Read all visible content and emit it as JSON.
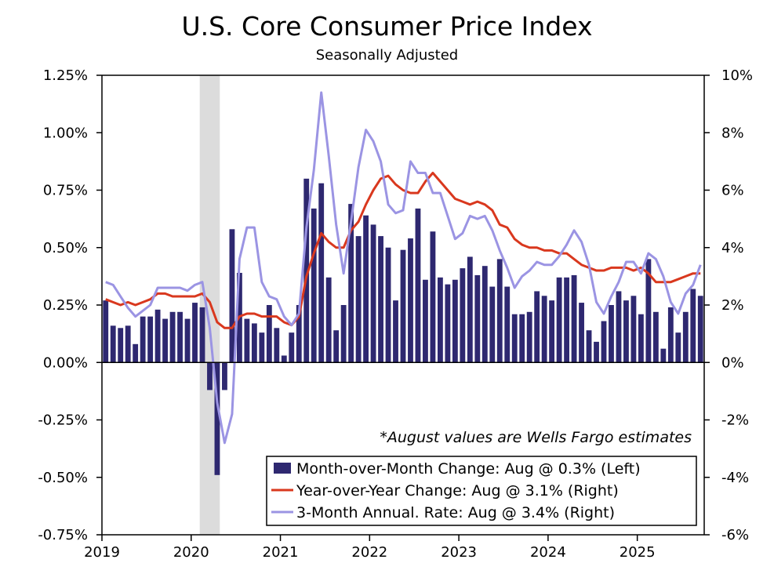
{
  "chart_data": {
    "type": "bar",
    "title": "U.S. Core Consumer Price Index",
    "subtitle": "Seasonally Adjusted",
    "annotation": "*August values are Wells Fargo estimates",
    "start": "2019-01",
    "x_tick_labels": [
      "2019",
      "2020",
      "2021",
      "2022",
      "2023",
      "2024",
      "2025"
    ],
    "y_left": {
      "ylim": [
        -0.75,
        1.25
      ],
      "ticks": [
        -0.75,
        -0.5,
        -0.25,
        0,
        0.25,
        0.5,
        0.75,
        1.0,
        1.25
      ],
      "tick_labels": [
        "-0.75%",
        "-0.50%",
        "-0.25%",
        "0.00%",
        "0.25%",
        "0.50%",
        "0.75%",
        "1.00%",
        "1.25%"
      ]
    },
    "y_right": {
      "ylim": [
        -6,
        10
      ],
      "ticks": [
        -6,
        -4,
        -2,
        0,
        2,
        4,
        6,
        8,
        10
      ],
      "tick_labels": [
        "-6%",
        "-4%",
        "-2%",
        "0%",
        "2%",
        "4%",
        "6%",
        "8%",
        "10%"
      ]
    },
    "recession_shading": [
      "2020-02",
      "2020-04"
    ],
    "legend_position": "bottom-right",
    "series": [
      {
        "name": "Month-over-Month Change: Aug @ 0.3% (Left)",
        "kind": "bar",
        "axis": "left",
        "color": "#2e2870",
        "values": [
          0.27,
          0.16,
          0.15,
          0.16,
          0.08,
          0.2,
          0.2,
          0.23,
          0.19,
          0.22,
          0.22,
          0.19,
          0.26,
          0.24,
          -0.12,
          -0.49,
          -0.12,
          0.58,
          0.39,
          0.19,
          0.17,
          0.13,
          0.25,
          0.15,
          0.03,
          0.13,
          0.25,
          0.8,
          0.67,
          0.78,
          0.37,
          0.14,
          0.25,
          0.69,
          0.55,
          0.64,
          0.6,
          0.55,
          0.5,
          0.27,
          0.49,
          0.54,
          0.67,
          0.36,
          0.57,
          0.37,
          0.34,
          0.36,
          0.41,
          0.46,
          0.38,
          0.42,
          0.33,
          0.45,
          0.33,
          0.21,
          0.21,
          0.22,
          0.31,
          0.29,
          0.27,
          0.37,
          0.37,
          0.38,
          0.26,
          0.14,
          0.09,
          0.18,
          0.25,
          0.31,
          0.27,
          0.29,
          0.21,
          0.45,
          0.22,
          0.06,
          0.24,
          0.13,
          0.22,
          0.32,
          0.29
        ]
      },
      {
        "name": "Year-over-Year Change: Aug @ 3.1% (Right)",
        "kind": "line",
        "axis": "right",
        "color": "#d9381e",
        "values": [
          2.2,
          2.1,
          2.0,
          2.1,
          2.0,
          2.1,
          2.2,
          2.4,
          2.4,
          2.3,
          2.3,
          2.3,
          2.3,
          2.4,
          2.1,
          1.4,
          1.2,
          1.2,
          1.6,
          1.7,
          1.7,
          1.6,
          1.6,
          1.6,
          1.4,
          1.3,
          1.6,
          3.0,
          3.8,
          4.5,
          4.2,
          4.0,
          4.0,
          4.6,
          4.9,
          5.5,
          6.0,
          6.4,
          6.5,
          6.2,
          6.0,
          5.9,
          5.9,
          6.3,
          6.6,
          6.3,
          6.0,
          5.7,
          5.6,
          5.5,
          5.6,
          5.5,
          5.3,
          4.8,
          4.7,
          4.3,
          4.1,
          4.0,
          4.0,
          3.9,
          3.9,
          3.8,
          3.8,
          3.6,
          3.4,
          3.3,
          3.2,
          3.2,
          3.3,
          3.3,
          3.3,
          3.2,
          3.3,
          3.1,
          2.8,
          2.8,
          2.8,
          2.9,
          3.0,
          3.1,
          3.1
        ]
      },
      {
        "name": "3-Month Annual. Rate: Aug @ 3.4% (Right)",
        "kind": "line",
        "axis": "right",
        "color": "#9b94e3",
        "values": [
          2.8,
          2.7,
          2.3,
          1.9,
          1.6,
          1.8,
          2.0,
          2.6,
          2.6,
          2.6,
          2.6,
          2.5,
          2.7,
          2.8,
          1.2,
          -1.4,
          -2.8,
          -1.8,
          3.6,
          4.7,
          4.7,
          2.8,
          2.3,
          2.2,
          1.6,
          1.3,
          1.7,
          4.7,
          6.7,
          9.4,
          7.2,
          4.8,
          3.1,
          4.9,
          6.8,
          8.1,
          7.7,
          7.0,
          5.5,
          5.2,
          5.3,
          7.0,
          6.6,
          6.6,
          5.9,
          5.9,
          5.1,
          4.3,
          4.5,
          5.1,
          5.0,
          5.1,
          4.6,
          3.9,
          3.3,
          2.6,
          3.0,
          3.2,
          3.5,
          3.4,
          3.4,
          3.7,
          4.1,
          4.6,
          4.2,
          3.4,
          2.1,
          1.7,
          2.3,
          2.8,
          3.5,
          3.5,
          3.1,
          3.8,
          3.6,
          3.0,
          2.1,
          1.7,
          2.4,
          2.7,
          3.4
        ]
      }
    ]
  }
}
